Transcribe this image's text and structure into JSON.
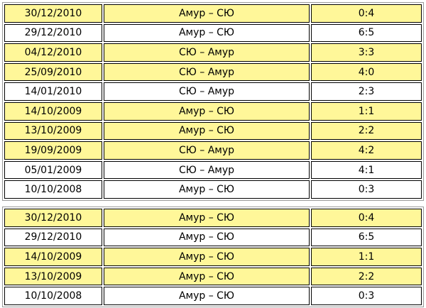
{
  "tables": [
    {
      "rows": [
        {
          "cells": [
            "30/12/2010",
            "Амур – СЮ",
            "0:4"
          ],
          "highlight": true
        },
        {
          "cells": [
            "29/12/2010",
            "Амур – СЮ",
            "6:5"
          ],
          "highlight": false
        },
        {
          "cells": [
            "04/12/2010",
            "СЮ – Амур",
            "3:3"
          ],
          "highlight": true
        },
        {
          "cells": [
            "25/09/2010",
            "СЮ – Амур",
            "4:0"
          ],
          "highlight": true
        },
        {
          "cells": [
            "14/01/2010",
            "СЮ – Амур",
            "2:3"
          ],
          "highlight": false
        },
        {
          "cells": [
            "14/10/2009",
            "Амур – СЮ",
            "1:1"
          ],
          "highlight": true
        },
        {
          "cells": [
            "13/10/2009",
            "Амур – СЮ",
            "2:2"
          ],
          "highlight": true
        },
        {
          "cells": [
            "19/09/2009",
            "СЮ – Амур",
            "4:2"
          ],
          "highlight": true
        },
        {
          "cells": [
            "05/01/2009",
            "СЮ – Амур",
            "4:1"
          ],
          "highlight": false
        },
        {
          "cells": [
            "10/10/2008",
            "Амур – СЮ",
            "0:3"
          ],
          "highlight": false
        }
      ]
    },
    {
      "rows": [
        {
          "cells": [
            "30/12/2010",
            "Амур – СЮ",
            "0:4"
          ],
          "highlight": true
        },
        {
          "cells": [
            "29/12/2010",
            "Амур – СЮ",
            "6:5"
          ],
          "highlight": false
        },
        {
          "cells": [
            "14/10/2009",
            "Амур – СЮ",
            "1:1"
          ],
          "highlight": true
        },
        {
          "cells": [
            "13/10/2009",
            "Амур – СЮ",
            "2:2"
          ],
          "highlight": true
        },
        {
          "cells": [
            "10/10/2008",
            "Амур – СЮ",
            "0:3"
          ],
          "highlight": false
        }
      ]
    }
  ]
}
